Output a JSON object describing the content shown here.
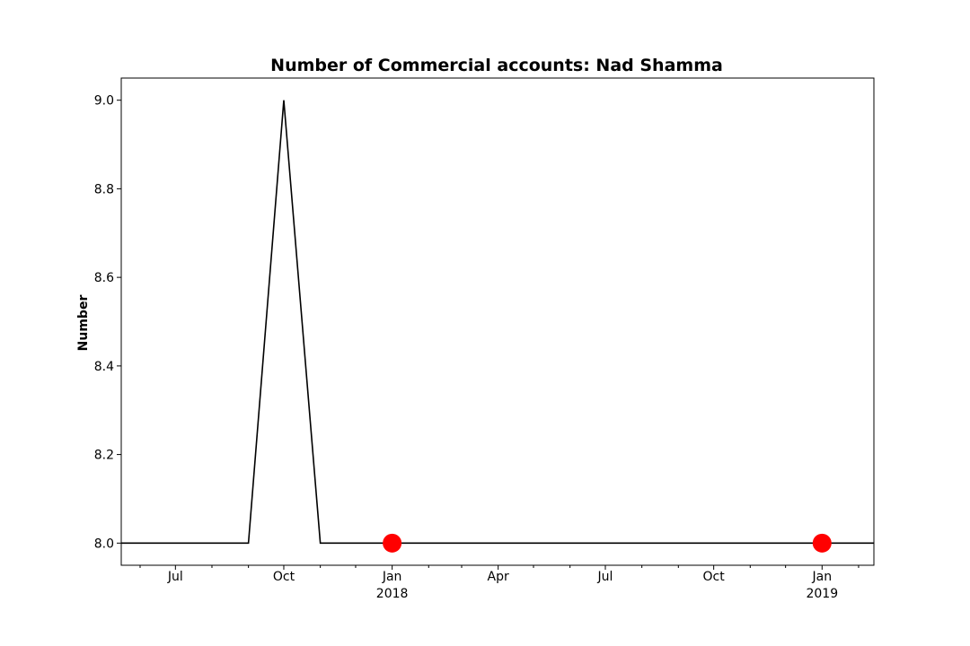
{
  "chart_data": {
    "type": "line",
    "title": "Number of Commercial accounts: Nad Shamma",
    "xlabel": "",
    "ylabel": "Number",
    "xlim": [
      "2017-05-16",
      "2019-02-14"
    ],
    "ylim": [
      7.95,
      9.05
    ],
    "y_ticks": [
      {
        "value": 8.0,
        "label": "8.0"
      },
      {
        "value": 8.2,
        "label": "8.2"
      },
      {
        "value": 8.4,
        "label": "8.4"
      },
      {
        "value": 8.6,
        "label": "8.6"
      },
      {
        "value": 8.8,
        "label": "8.8"
      },
      {
        "value": 9.0,
        "label": "9.0"
      }
    ],
    "x_ticks": [
      {
        "date": "2017-07-01",
        "label": "Jul",
        "sublabel": ""
      },
      {
        "date": "2017-10-01",
        "label": "Oct",
        "sublabel": ""
      },
      {
        "date": "2018-01-01",
        "label": "Jan",
        "sublabel": "2018"
      },
      {
        "date": "2018-04-01",
        "label": "Apr",
        "sublabel": ""
      },
      {
        "date": "2018-07-01",
        "label": "Jul",
        "sublabel": ""
      },
      {
        "date": "2018-10-01",
        "label": "Oct",
        "sublabel": ""
      },
      {
        "date": "2019-01-01",
        "label": "Jan",
        "sublabel": "2019"
      }
    ],
    "x_minor_ticks": [
      "2017-06-01",
      "2017-08-01",
      "2017-09-01",
      "2017-11-01",
      "2017-12-01",
      "2018-02-01",
      "2018-03-01",
      "2018-05-01",
      "2018-06-01",
      "2018-08-01",
      "2018-09-01",
      "2018-11-01",
      "2018-12-01",
      "2019-02-01"
    ],
    "series": [
      {
        "color": "#000000",
        "x": [
          "2017-05-16",
          "2017-06-01",
          "2017-07-01",
          "2017-08-01",
          "2017-09-01",
          "2017-10-01",
          "2017-11-01",
          "2017-12-01",
          "2018-01-01",
          "2018-06-01",
          "2018-12-01",
          "2019-01-01",
          "2019-02-14"
        ],
        "y": [
          8,
          8,
          8,
          8,
          8,
          9,
          8,
          8,
          8,
          8,
          8,
          8,
          8
        ]
      }
    ],
    "markers": [
      {
        "x": "2018-01-01",
        "y": 8,
        "color": "#ff0000"
      },
      {
        "x": "2019-01-01",
        "y": 8,
        "color": "#ff0000"
      }
    ],
    "grid": false,
    "legend": "none"
  }
}
